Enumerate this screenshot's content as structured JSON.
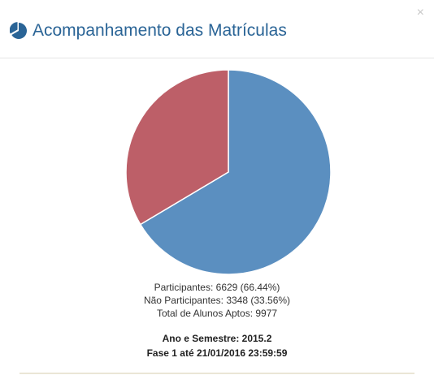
{
  "header": {
    "title": "Acompanhamento das Matrículas",
    "title_icon": "pie-chart-icon",
    "close_label": "×"
  },
  "chart_data": {
    "type": "pie",
    "slices": [
      {
        "label": "Participantes",
        "value": 6629,
        "percent": 66.44,
        "color": "#5b8fc0"
      },
      {
        "label": "Não Participantes",
        "value": 3348,
        "percent": 33.56,
        "color": "#bd5f68"
      }
    ]
  },
  "stats": {
    "participantes": "Participantes: 6629 (66.44%)",
    "nao_participantes": "Não Participantes: 3348 (33.56%)",
    "total": "Total de Alunos Aptos: 9977"
  },
  "info": {
    "ano_semestre": "Ano e Semestre: 2015.2",
    "fase": "Fase 1 até 21/01/2016 23:59:59"
  },
  "colors": {
    "title": "#2a6496",
    "participantes": "#5b8fc0",
    "nao_participantes": "#bd5f68"
  }
}
